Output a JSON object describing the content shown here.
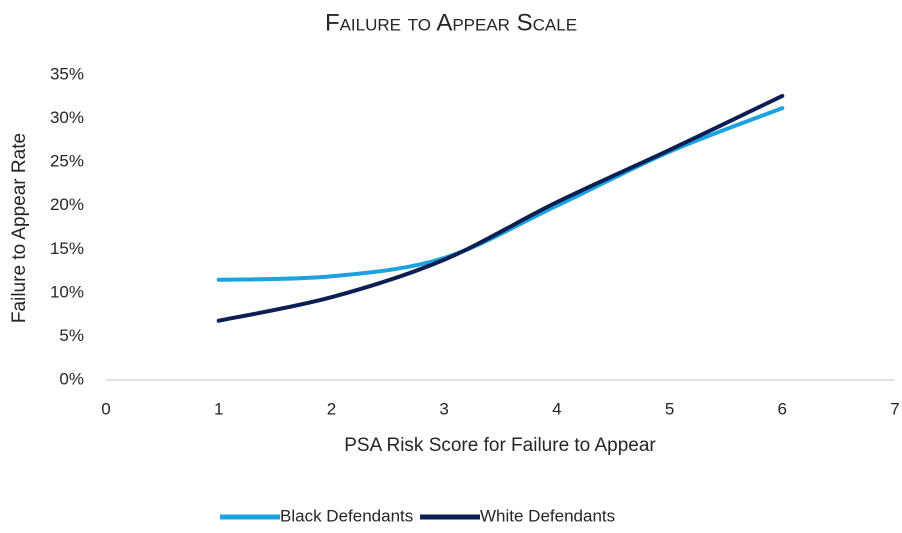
{
  "chart_data": {
    "type": "line",
    "title": "Failure to Appear Scale",
    "x_label": "PSA Risk Score for Failure to Appear",
    "y_label": "Failure to Appear Rate",
    "x": [
      1,
      2,
      3,
      4,
      5,
      6
    ],
    "series": [
      {
        "name": "Black Defendants",
        "color": "#1aa3e0",
        "values": [
          11.5,
          11.9,
          14.0,
          20.0,
          26.2,
          31.2
        ]
      },
      {
        "name": "White Defendants",
        "color": "#0b1f52",
        "values": [
          6.8,
          9.5,
          13.8,
          20.4,
          26.4,
          32.6
        ]
      }
    ],
    "xlim": [
      0,
      7
    ],
    "xticks": [
      0,
      1,
      2,
      3,
      4,
      5,
      6,
      7
    ],
    "ylim": [
      0,
      35
    ],
    "yticks": [
      {
        "value": 0,
        "label": "0%"
      },
      {
        "value": 5,
        "label": "5%"
      },
      {
        "value": 10,
        "label": "10%"
      },
      {
        "value": 15,
        "label": "15%"
      },
      {
        "value": 20,
        "label": "20%"
      },
      {
        "value": 25,
        "label": "25%"
      },
      {
        "value": 30,
        "label": "30%"
      },
      {
        "value": 35,
        "label": "35%"
      }
    ],
    "grid": false,
    "legend": "bottom",
    "smooth": true
  }
}
